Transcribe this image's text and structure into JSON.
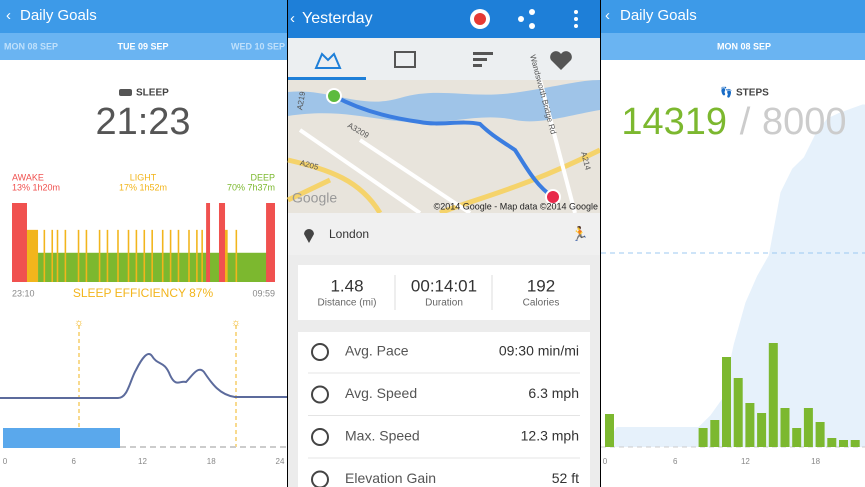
{
  "sleep_panel": {
    "header": "Daily Goals",
    "dates": [
      "MON 08 SEP",
      "TUE 09 SEP",
      "WED 10 SEP"
    ],
    "section": "SLEEP",
    "total": "21:23",
    "legend": [
      {
        "name": "AWAKE",
        "detail": "13% 1h20m",
        "color": "#f0514f"
      },
      {
        "name": "LIGHT",
        "detail": "17% 1h52m",
        "color": "#f2b51c"
      },
      {
        "name": "DEEP",
        "detail": "70% 7h37m",
        "color": "#7cb82f"
      }
    ],
    "stripes": [
      [
        0,
        0,
        5.7
      ],
      [
        1,
        5.7,
        4.2
      ],
      [
        2,
        9.9,
        87.5
      ],
      [
        1,
        12,
        0.6
      ],
      [
        1,
        15,
        0.6
      ],
      [
        1,
        17,
        0.6
      ],
      [
        1,
        20,
        0.6
      ],
      [
        1,
        25,
        0.6
      ],
      [
        1,
        28,
        0.6
      ],
      [
        1,
        33,
        0.6
      ],
      [
        1,
        36,
        0.6
      ],
      [
        1,
        40,
        0.6
      ],
      [
        1,
        44,
        0.6
      ],
      [
        1,
        47,
        0.6
      ],
      [
        1,
        50,
        0.6
      ],
      [
        1,
        53,
        0.6
      ],
      [
        1,
        57,
        0.6
      ],
      [
        1,
        60,
        0.6
      ],
      [
        1,
        63,
        0.6
      ],
      [
        1,
        67,
        0.6
      ],
      [
        1,
        70,
        0.6
      ],
      [
        1,
        72,
        0.6
      ],
      [
        0,
        73.8,
        1.5
      ],
      [
        0,
        78.7,
        2.3
      ],
      [
        1,
        81,
        1
      ],
      [
        1,
        85,
        0.6
      ],
      [
        0,
        96.6,
        3.4
      ]
    ],
    "start": "23:10",
    "efficiency": "SLEEP EFFICIENCY 87%",
    "end": "09:59",
    "hours": [
      "0",
      "6",
      "12",
      "18",
      "24"
    ]
  },
  "run_panel": {
    "header": "Yesterday",
    "map_labels": [
      "A219",
      "A3209",
      "A205",
      "Wandsworth Bridge Rd",
      "A214",
      "Google"
    ],
    "copyright": "©2014 Google - Map data ©2014 Google",
    "location": "London",
    "stats": [
      {
        "value": "1.48",
        "label": "Distance (mi)"
      },
      {
        "value": "00:14:01",
        "label": "Duration"
      },
      {
        "value": "192",
        "label": "Calories"
      }
    ],
    "details": [
      {
        "label": "Avg. Pace",
        "value": "09:30 min/mi"
      },
      {
        "label": "Avg. Speed",
        "value": "6.3 mph"
      },
      {
        "label": "Max. Speed",
        "value": "12.3 mph"
      },
      {
        "label": "Elevation Gain",
        "value": "52 ft"
      }
    ]
  },
  "steps_panel": {
    "header": "Daily Goals",
    "date": "MON 08 SEP",
    "section": "STEPS",
    "steps": "14319",
    "separator": "/",
    "goal": "8000",
    "goal_value": 8000,
    "hours": [
      0,
      8,
      9,
      10,
      11,
      12,
      13,
      14,
      15,
      16,
      17,
      18,
      19,
      20,
      21
    ],
    "hourly_steps": [
      825,
      475,
      675,
      2250,
      1725,
      1100,
      850,
      2600,
      975,
      475,
      975,
      625,
      225,
      175,
      175
    ],
    "ticks": [
      0,
      6,
      12,
      18
    ],
    "color": "#7cb82f"
  }
}
